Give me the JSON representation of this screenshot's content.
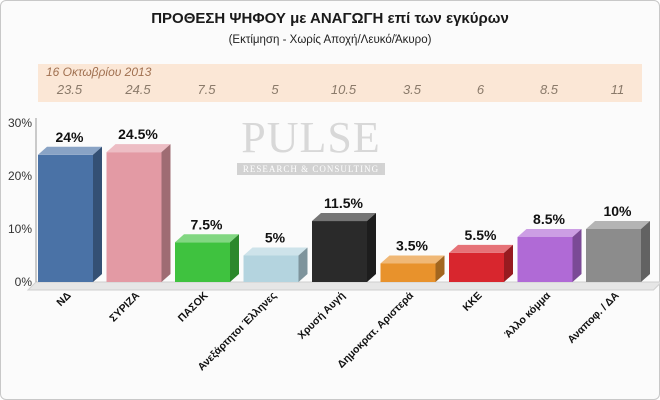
{
  "chart_data": {
    "type": "bar",
    "title": "ΠΡΟΘΕΣΗ ΨΗΦΟΥ με ΑΝΑΓΩΓΗ επί των εγκύρων",
    "subtitle": "(Εκτίμηση  -  Χωρίς Αποχή/Λευκό/Άκυρο)",
    "categories": [
      "ΝΔ",
      "ΣΥΡΙΖΑ",
      "ΠΑΣΟΚ",
      "Ανεξάρτητοι Έλληνες",
      "Χρυσή Αυγή",
      "Δημοκρατ. Αριστερά",
      "ΚΚΕ",
      "Άλλο κόμμα",
      "Αναποφ. / ΔΑ"
    ],
    "values": [
      24,
      24.5,
      7.5,
      5,
      11.5,
      3.5,
      5.5,
      8.5,
      10
    ],
    "value_labels": [
      "24%",
      "24.5%",
      "7.5%",
      "5%",
      "11.5%",
      "3.5%",
      "5.5%",
      "8.5%",
      "10%"
    ],
    "colors": [
      "#4a72a6",
      "#e39aa4",
      "#3fc23f",
      "#b4d4df",
      "#2a2a2a",
      "#e8922c",
      "#d8262e",
      "#b06ad6",
      "#8c8c8c"
    ],
    "y_ticks": [
      "0%",
      "10%",
      "20%",
      "30%"
    ],
    "ylim": [
      0,
      30
    ],
    "grid": false,
    "previous": {
      "label": "16 Οκτωβρίου 2013",
      "values": [
        "23.5",
        "24.5",
        "7.5",
        "5",
        "10.5",
        "3.5",
        "6",
        "8.5",
        "11"
      ]
    }
  },
  "watermark": {
    "main": "PULSE",
    "sub": "RESEARCH & CONSULTING"
  }
}
